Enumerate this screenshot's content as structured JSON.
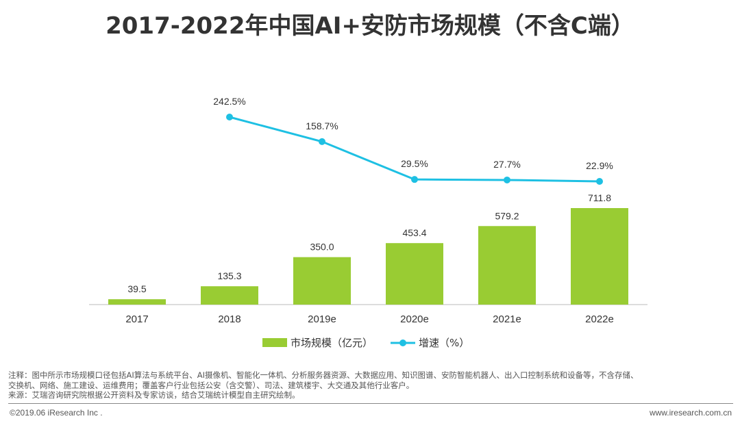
{
  "chart_data": {
    "type": "bar+line",
    "title": "2017-2022年中国AI+安防市场规模（不含C端）",
    "categories": [
      "2017",
      "2018",
      "2019e",
      "2020e",
      "2021e",
      "2022e"
    ],
    "series": [
      {
        "name": "市场规模（亿元）",
        "type": "bar",
        "color": "#99cc33",
        "values": [
          39.5,
          135.3,
          350.0,
          453.4,
          579.2,
          711.8
        ],
        "labels": [
          "39.5",
          "135.3",
          "350.0",
          "453.4",
          "579.2",
          "711.8"
        ]
      },
      {
        "name": "增速（%）",
        "type": "line",
        "color": "#1ec0e3",
        "values": [
          null,
          242.5,
          158.7,
          29.5,
          27.7,
          22.9
        ],
        "labels": [
          "",
          "242.5%",
          "158.7%",
          "29.5%",
          "27.7%",
          "22.9%"
        ]
      }
    ],
    "legend_position": "bottom",
    "grid": false,
    "xlabel": "",
    "ylabel": ""
  },
  "notes": [
    "注释：图中所示市场规模口径包括AI算法与系统平台、AI摄像机、智能化一体机、分析服务器资源、大数据应用、知识图谱、安防智能机器人、出入口控制系统和设备等，不含存储、",
    "交换机、网络、施工建设、运维费用；覆盖客户行业包括公安（含交警）、司法、建筑楼宇、大交通及其他行业客户。",
    "来源：艾瑞咨询研究院根据公开资料及专家访谈，结合艾瑞统计模型自主研究绘制。"
  ],
  "footer": {
    "copyright": "©2019.06 iResearch Inc .",
    "website": "www.iresearch.com.cn"
  }
}
